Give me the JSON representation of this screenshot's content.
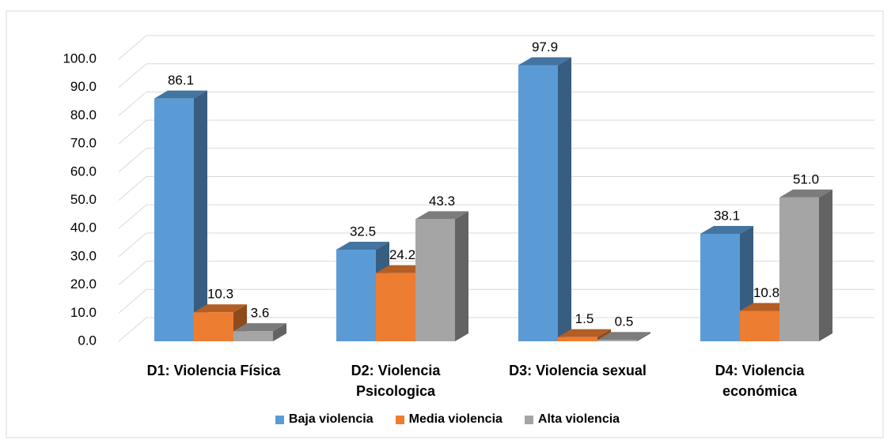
{
  "chart_data": {
    "type": "bar3d",
    "categories": [
      "D1: Violencia Física",
      "D2: Violencia Psicologica",
      "D3: Violencia sexual",
      "D4: Violencia económica"
    ],
    "series": [
      {
        "name": "Baja violencia",
        "color": "#5b9bd5",
        "values": [
          86.1,
          32.5,
          97.9,
          38.1
        ],
        "value_labels": [
          "86.1",
          "32.5",
          "97.9",
          "38.1"
        ]
      },
      {
        "name": "Media violencia",
        "color": "#ed7d31",
        "values": [
          10.3,
          24.2,
          1.5,
          10.8
        ],
        "value_labels": [
          "10.3",
          "24.2",
          "1.5",
          "10.8"
        ]
      },
      {
        "name": "Alta violencia",
        "color": "#a5a5a5",
        "values": [
          3.6,
          43.3,
          0.5,
          51.0
        ],
        "value_labels": [
          "3.6",
          "43.3",
          "0.5",
          "51.0"
        ]
      }
    ],
    "ylim": [
      0,
      100
    ],
    "yticks": [
      {
        "value": 0,
        "label": "0.0"
      },
      {
        "value": 10,
        "label": "10.0"
      },
      {
        "value": 20,
        "label": "20.0"
      },
      {
        "value": 30,
        "label": "30.0"
      },
      {
        "value": 40,
        "label": "40.0"
      },
      {
        "value": 50,
        "label": "50.0"
      },
      {
        "value": 60,
        "label": "60.0"
      },
      {
        "value": 70,
        "label": "70.0"
      },
      {
        "value": 80,
        "label": "80.0"
      },
      {
        "value": 90,
        "label": "90.0"
      },
      {
        "value": 100,
        "label": "100.0"
      }
    ],
    "grid": true,
    "legend": "bottom"
  }
}
